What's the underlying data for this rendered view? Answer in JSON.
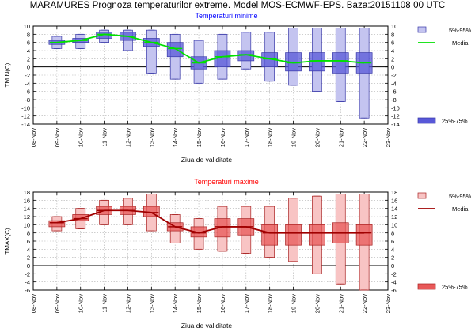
{
  "page": {
    "title": "MARAMURES  Prognoza temperaturilor extreme.  Model MOS-ECMWF-EPS. Baza:20151108 00 UTC"
  },
  "chart_data": [
    {
      "type": "box",
      "title": "Temperaturi minime",
      "ylabel": "TMIN(C)",
      "xlabel": "Ziua de validitate",
      "categories": [
        "08-Nov",
        "09-Nov",
        "10-Nov",
        "11-Nov",
        "12-Nov",
        "13-Nov",
        "14-Nov",
        "15-Nov",
        "16-Nov",
        "17-Nov",
        "18-Nov",
        "19-Nov",
        "20-Nov",
        "21-Nov",
        "22-Nov",
        "23-Nov"
      ],
      "yticks": [
        10,
        8,
        6,
        4,
        2,
        0,
        -2,
        -4,
        -6,
        -8,
        -10,
        -12,
        -14
      ],
      "ylim": [
        -14,
        10
      ],
      "grid": true,
      "title_color": "#0000ff",
      "box_fill": "#a8a8ec",
      "box_edge": "#3838a8",
      "legend": [
        {
          "name": "5%-95%",
          "kind": "box-light",
          "color": "#c4c4f0"
        },
        {
          "name": "Media",
          "kind": "line",
          "color": "#00e000"
        },
        {
          "name": "25%-75%",
          "kind": "box-dark",
          "color": "#5858d8"
        }
      ],
      "series": [
        {
          "name": "5%-95%",
          "x": [
            "09-Nov",
            "10-Nov",
            "11-Nov",
            "12-Nov",
            "13-Nov",
            "14-Nov",
            "15-Nov",
            "16-Nov",
            "17-Nov",
            "18-Nov",
            "19-Nov",
            "20-Nov",
            "21-Nov",
            "22-Nov"
          ],
          "low": [
            4.5,
            4.5,
            6.0,
            4.0,
            -1.5,
            -3.0,
            -4.0,
            -3.0,
            -0.5,
            -3.5,
            -4.5,
            -6.0,
            -8.5,
            -12.5
          ],
          "high": [
            7.5,
            8.0,
            9.0,
            9.0,
            9.0,
            8.0,
            6.5,
            8.0,
            8.5,
            8.5,
            9.5,
            9.5,
            9.5,
            9.5
          ]
        },
        {
          "name": "25%-75%",
          "x": [
            "09-Nov",
            "10-Nov",
            "11-Nov",
            "12-Nov",
            "13-Nov",
            "14-Nov",
            "15-Nov",
            "16-Nov",
            "17-Nov",
            "18-Nov",
            "19-Nov",
            "20-Nov",
            "21-Nov",
            "22-Nov"
          ],
          "low": [
            5.5,
            6.0,
            7.0,
            6.5,
            5.0,
            2.5,
            -0.5,
            0.0,
            1.5,
            0.0,
            -1.0,
            -1.0,
            -1.5,
            -1.5
          ],
          "high": [
            6.5,
            7.0,
            8.5,
            8.5,
            7.0,
            6.0,
            2.5,
            4.0,
            4.0,
            3.5,
            3.5,
            3.5,
            3.5,
            3.5
          ]
        },
        {
          "name": "Media",
          "x": [
            "09-Nov",
            "10-Nov",
            "11-Nov",
            "12-Nov",
            "13-Nov",
            "14-Nov",
            "15-Nov",
            "16-Nov",
            "17-Nov",
            "18-Nov",
            "19-Nov",
            "20-Nov",
            "21-Nov",
            "22-Nov"
          ],
          "values": [
            6.0,
            6.5,
            8.0,
            7.5,
            6.0,
            4.5,
            1.0,
            2.5,
            3.0,
            2.0,
            1.0,
            1.5,
            1.5,
            1.0
          ]
        }
      ]
    },
    {
      "type": "box",
      "title": "Temperaturi maxime",
      "ylabel": "TMAX(C)",
      "xlabel": "Ziua de validitate",
      "categories": [
        "08-Nov",
        "09-Nov",
        "10-Nov",
        "11-Nov",
        "12-Nov",
        "13-Nov",
        "14-Nov",
        "15-Nov",
        "16-Nov",
        "17-Nov",
        "18-Nov",
        "19-Nov",
        "20-Nov",
        "21-Nov",
        "22-Nov",
        "23-Nov"
      ],
      "yticks": [
        18,
        16,
        14,
        12,
        10,
        8,
        6,
        4,
        2,
        0,
        -2,
        -4,
        -6
      ],
      "ylim": [
        -6,
        18
      ],
      "grid": true,
      "title_color": "#ff0000",
      "box_fill": "#f09090",
      "box_edge": "#a82020",
      "legend": [
        {
          "name": "5%-95%",
          "kind": "box-light",
          "color": "#f8c4c4"
        },
        {
          "name": "Media",
          "kind": "line",
          "color": "#a00000"
        },
        {
          "name": "25%-75%",
          "kind": "box-dark",
          "color": "#e85858"
        }
      ],
      "series": [
        {
          "name": "5%-95%",
          "x": [
            "09-Nov",
            "10-Nov",
            "11-Nov",
            "12-Nov",
            "13-Nov",
            "14-Nov",
            "15-Nov",
            "16-Nov",
            "17-Nov",
            "18-Nov",
            "19-Nov",
            "20-Nov",
            "21-Nov",
            "22-Nov"
          ],
          "low": [
            8.5,
            9.0,
            10.0,
            10.0,
            8.5,
            5.5,
            4.0,
            3.5,
            3.0,
            2.0,
            1.0,
            -2.0,
            -4.5,
            -6.0
          ],
          "high": [
            12.0,
            14.0,
            16.0,
            16.5,
            17.5,
            12.5,
            11.5,
            14.5,
            14.5,
            14.5,
            16.5,
            17.0,
            17.5,
            17.5
          ]
        },
        {
          "name": "25%-75%",
          "x": [
            "09-Nov",
            "10-Nov",
            "11-Nov",
            "12-Nov",
            "13-Nov",
            "14-Nov",
            "15-Nov",
            "16-Nov",
            "17-Nov",
            "18-Nov",
            "19-Nov",
            "20-Nov",
            "21-Nov",
            "22-Nov"
          ],
          "low": [
            9.5,
            11.0,
            12.5,
            12.5,
            12.0,
            8.5,
            7.0,
            7.0,
            7.5,
            5.0,
            5.0,
            5.0,
            5.5,
            5.0
          ],
          "high": [
            11.0,
            12.5,
            14.5,
            14.5,
            14.5,
            10.5,
            9.5,
            11.5,
            11.5,
            10.0,
            10.0,
            10.0,
            10.5,
            10.0
          ]
        },
        {
          "name": "Media",
          "x": [
            "09-Nov",
            "10-Nov",
            "11-Nov",
            "12-Nov",
            "13-Nov",
            "14-Nov",
            "15-Nov",
            "16-Nov",
            "17-Nov",
            "18-Nov",
            "19-Nov",
            "20-Nov",
            "21-Nov",
            "22-Nov"
          ],
          "values": [
            10.5,
            11.5,
            13.5,
            13.5,
            13.0,
            9.5,
            8.0,
            9.5,
            9.5,
            8.0,
            8.0,
            8.0,
            8.0,
            8.0
          ]
        }
      ]
    }
  ]
}
